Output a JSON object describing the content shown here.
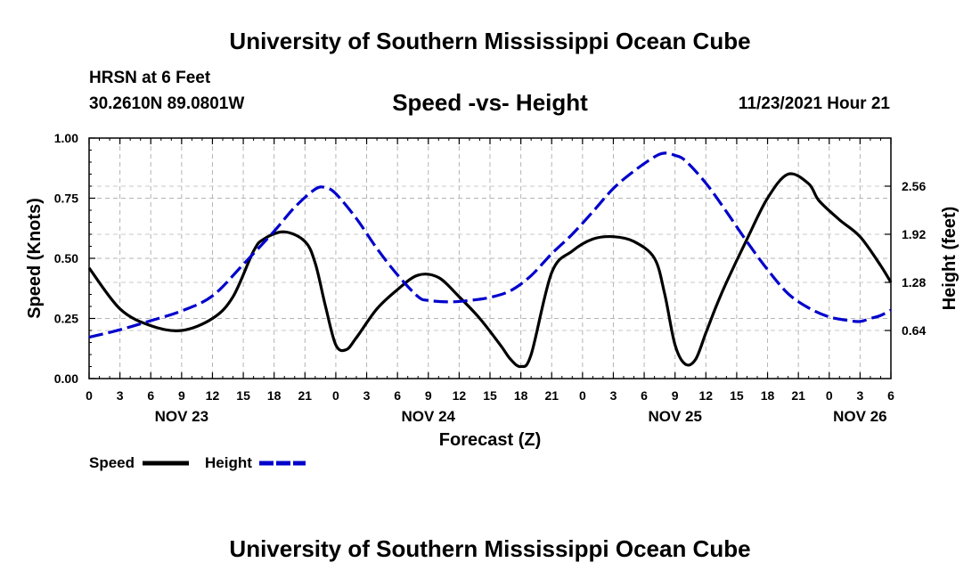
{
  "page": {
    "title": "University of Southern Mississippi Ocean Cube",
    "footer_title": "University of Southern Mississippi Ocean Cube",
    "station": "HRSN at 6 Feet",
    "coords": "30.2610N  89.0801W",
    "datetime": "11/23/2021 Hour 21"
  },
  "chart_data": {
    "type": "line",
    "title": "Speed -vs- Height",
    "xlabel": "Forecast (Z)",
    "ylabel": "Speed (Knots)",
    "y2label": "Height (feet)",
    "ylim": [
      0,
      1
    ],
    "y2lim": [
      0,
      3.2
    ],
    "xlim": [
      0,
      78
    ],
    "grid": true,
    "legend_position": "bottom-left",
    "x_ticks": [
      0,
      3,
      6,
      9,
      12,
      15,
      18,
      21,
      24,
      27,
      30,
      33,
      36,
      39,
      42,
      45,
      48,
      51,
      54,
      57,
      60,
      63,
      66,
      69,
      72,
      75,
      78
    ],
    "x_tick_labels": [
      "0",
      "3",
      "6",
      "9",
      "12",
      "15",
      "18",
      "21",
      "0",
      "3",
      "6",
      "9",
      "12",
      "15",
      "18",
      "21",
      "0",
      "3",
      "6",
      "9",
      "12",
      "15",
      "18",
      "21",
      "0",
      "3",
      "6"
    ],
    "y_ticks": [
      0,
      0.25,
      0.5,
      0.75,
      1.0
    ],
    "y_tick_labels": [
      "0.00",
      "0.25",
      "0.50",
      "0.75",
      "1.00"
    ],
    "y2_ticks": [
      0.64,
      1.28,
      1.92,
      2.56
    ],
    "y2_tick_labels": [
      "0.64",
      "1.28",
      "1.92",
      "2.56"
    ],
    "day_labels": [
      {
        "x": 9,
        "label": "NOV 23"
      },
      {
        "x": 33,
        "label": "NOV 24"
      },
      {
        "x": 57,
        "label": "NOV 25"
      },
      {
        "x": 75,
        "label": "NOV 26"
      }
    ],
    "series": [
      {
        "name": "Speed",
        "axis": "left",
        "color": "#000000",
        "style": "solid",
        "x": [
          0,
          3,
          6,
          9,
          12,
          14,
          16,
          17,
          19,
          21,
          22,
          23,
          24,
          25,
          26,
          28,
          30,
          32,
          34,
          36,
          38,
          40,
          41,
          42,
          43,
          45,
          47,
          49,
          51,
          53,
          55,
          56,
          57,
          58,
          59,
          60,
          61,
          62,
          64,
          66,
          68,
          70,
          71,
          73,
          75,
          77,
          78
        ],
        "y": [
          0.46,
          0.29,
          0.22,
          0.2,
          0.25,
          0.34,
          0.53,
          0.58,
          0.61,
          0.57,
          0.48,
          0.3,
          0.14,
          0.12,
          0.17,
          0.29,
          0.37,
          0.43,
          0.42,
          0.34,
          0.25,
          0.14,
          0.08,
          0.05,
          0.1,
          0.44,
          0.53,
          0.58,
          0.59,
          0.57,
          0.5,
          0.35,
          0.14,
          0.06,
          0.08,
          0.19,
          0.3,
          0.4,
          0.58,
          0.75,
          0.85,
          0.81,
          0.74,
          0.66,
          0.59,
          0.47,
          0.4
        ]
      },
      {
        "name": "Height",
        "axis": "right",
        "color": "#0000cc",
        "style": "dashed",
        "x": [
          0,
          3,
          6,
          9,
          12,
          15,
          18,
          20,
          22,
          23,
          24,
          26,
          28,
          30,
          32,
          33,
          35,
          37,
          39,
          41,
          43,
          45,
          47,
          49,
          51,
          53,
          55,
          56,
          57,
          58,
          60,
          62,
          64,
          66,
          68,
          70,
          72,
          74,
          75,
          76,
          77,
          78
        ],
        "y": [
          0.55,
          0.65,
          0.77,
          0.9,
          1.1,
          1.52,
          1.96,
          2.28,
          2.52,
          2.54,
          2.46,
          2.13,
          1.73,
          1.38,
          1.09,
          1.04,
          1.02,
          1.04,
          1.08,
          1.17,
          1.37,
          1.66,
          1.92,
          2.22,
          2.53,
          2.76,
          2.95,
          3.0,
          2.97,
          2.9,
          2.6,
          2.22,
          1.82,
          1.45,
          1.13,
          0.94,
          0.82,
          0.77,
          0.76,
          0.8,
          0.84,
          0.91
        ]
      }
    ]
  }
}
